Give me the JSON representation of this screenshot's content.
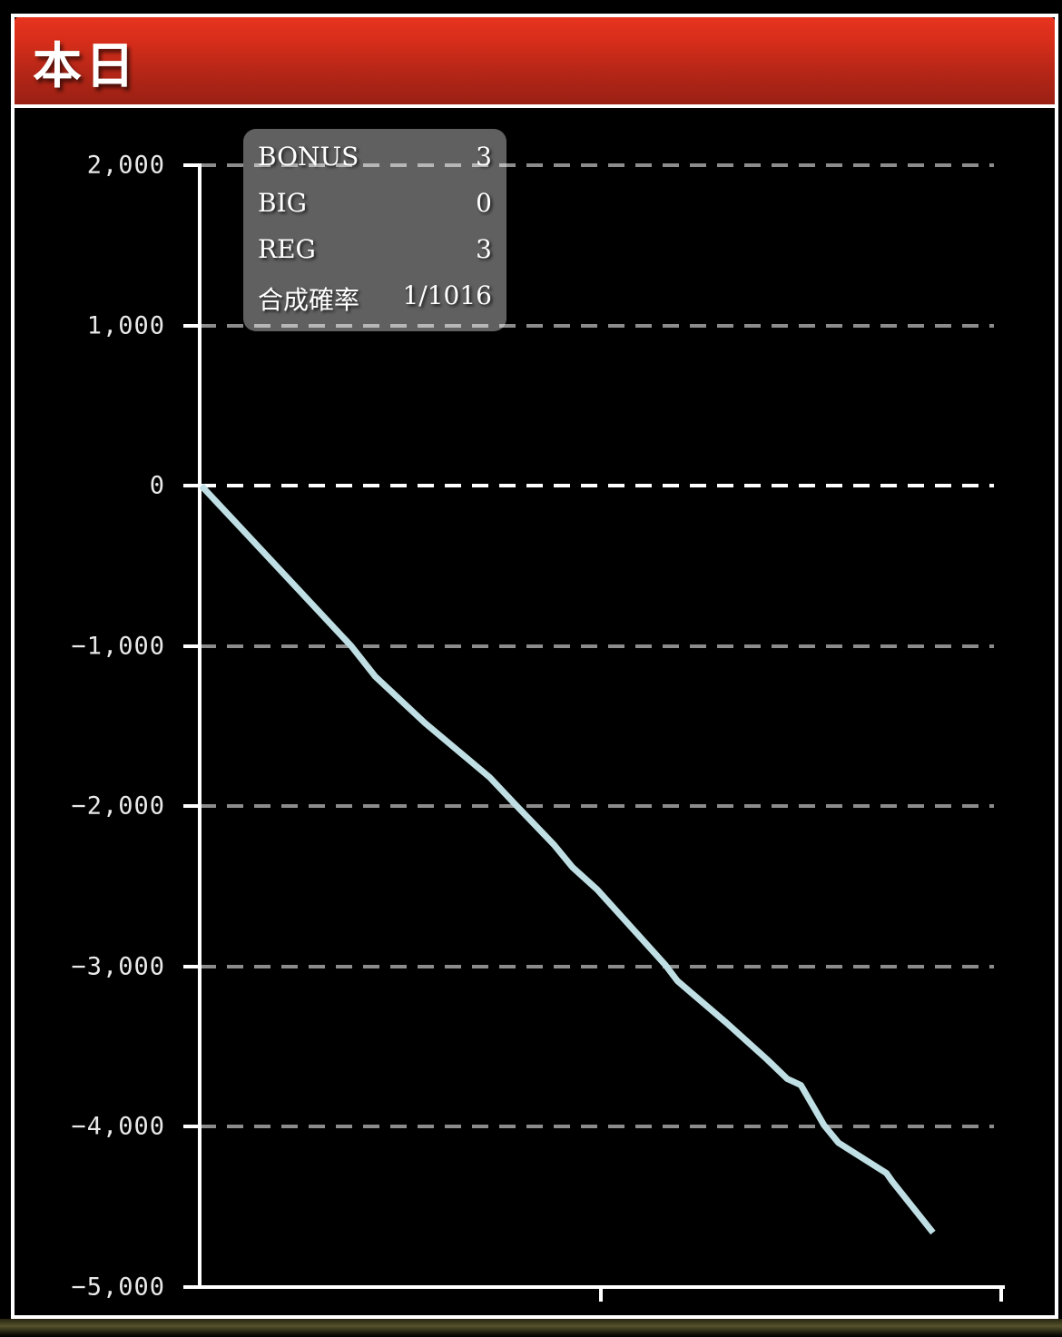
{
  "header": {
    "title": "本日"
  },
  "stats": {
    "rows": [
      {
        "label": "BONUS",
        "value": "3"
      },
      {
        "label": "BIG",
        "value": "0"
      },
      {
        "label": "REG",
        "value": "3"
      },
      {
        "label": "合成確率",
        "value": "1/1016"
      }
    ]
  },
  "chart_data": {
    "type": "line",
    "title": "本日",
    "ylim": [
      -5000,
      2000
    ],
    "ytick_interval": 1000,
    "grid": true,
    "legend": "none",
    "yticks": [
      {
        "label": "2,000",
        "value": 2000
      },
      {
        "label": "1,000",
        "value": 1000
      },
      {
        "label": "0",
        "value": 0
      },
      {
        "label": "−1,000",
        "value": -1000
      },
      {
        "label": "−2,000",
        "value": -2000
      },
      {
        "label": "−3,000",
        "value": -3000
      },
      {
        "label": "−4,000",
        "value": -4000
      },
      {
        "label": "−5,000",
        "value": -5000
      }
    ],
    "xtick_positions": [
      0.5,
      1.0
    ],
    "xtick_labels": [
      "",
      ""
    ],
    "series": [
      {
        "name": "payout-slump-line",
        "points": [
          [
            0.002,
            0
          ],
          [
            0.189,
            -1000
          ],
          [
            0.219,
            -1190
          ],
          [
            0.281,
            -1480
          ],
          [
            0.362,
            -1820
          ],
          [
            0.394,
            -1990
          ],
          [
            0.442,
            -2240
          ],
          [
            0.465,
            -2380
          ],
          [
            0.496,
            -2520
          ],
          [
            0.581,
            -2990
          ],
          [
            0.596,
            -3090
          ],
          [
            0.657,
            -3350
          ],
          [
            0.708,
            -3580
          ],
          [
            0.733,
            -3700
          ],
          [
            0.75,
            -3740
          ],
          [
            0.779,
            -3990
          ],
          [
            0.797,
            -4100
          ],
          [
            0.857,
            -4290
          ],
          [
            0.864,
            -4340
          ],
          [
            0.915,
            -4660
          ]
        ]
      }
    ]
  },
  "colors": {
    "line": "#bfdfe4",
    "grid": "#8c8c8c",
    "zero_line": "#ffffff",
    "axis": "#ffffff",
    "background": "#000000",
    "panel_border": "#ffffff",
    "header_gradient_top": "#e7341f",
    "header_gradient_bottom": "#9a2014",
    "stats_box": "#606060"
  }
}
